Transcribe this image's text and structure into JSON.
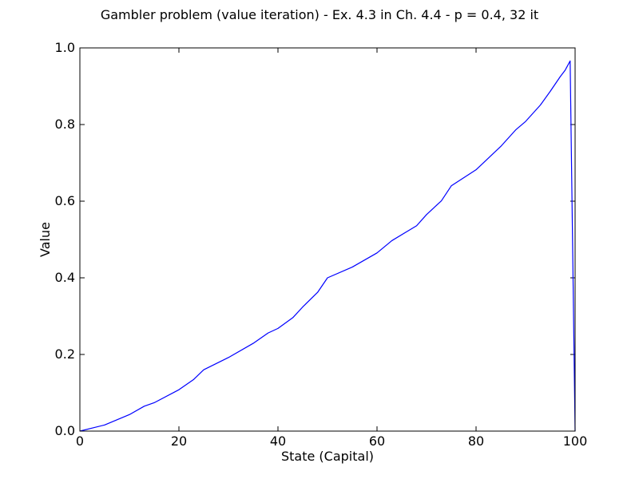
{
  "chart_data": {
    "type": "line",
    "title": "Gambler problem (value iteration) - Ex. 4.3 in Ch. 4.4 - p = 0.4, 32 it",
    "xlabel": "State (Capital)",
    "ylabel": "Value",
    "xlim": [
      0,
      100
    ],
    "ylim": [
      0,
      1.0
    ],
    "xticks": [
      0,
      20,
      40,
      60,
      80,
      100
    ],
    "xtick_labels": [
      "0",
      "20",
      "40",
      "60",
      "80",
      "100"
    ],
    "yticks": [
      0,
      0.2,
      0.4,
      0.6,
      0.8,
      1.0
    ],
    "ytick_labels": [
      "0.0",
      "0.2",
      "0.4",
      "0.6",
      "0.8",
      "1.0"
    ],
    "grid": false,
    "series": [
      {
        "color": "#0000ff",
        "x": [
          0,
          5,
          10,
          13,
          15,
          20,
          23,
          25,
          30,
          35,
          38,
          40,
          43,
          45,
          48,
          50,
          55,
          60,
          63,
          68,
          70,
          73,
          75,
          80,
          85,
          88,
          90,
          93,
          95,
          97,
          98,
          99,
          100
        ],
        "y": [
          0.0,
          0.016,
          0.043,
          0.065,
          0.074,
          0.108,
          0.135,
          0.16,
          0.192,
          0.229,
          0.256,
          0.268,
          0.296,
          0.324,
          0.362,
          0.4,
          0.428,
          0.465,
          0.497,
          0.536,
          0.565,
          0.601,
          0.64,
          0.682,
          0.743,
          0.786,
          0.808,
          0.851,
          0.887,
          0.925,
          0.942,
          0.966,
          0.0
        ]
      }
    ]
  }
}
